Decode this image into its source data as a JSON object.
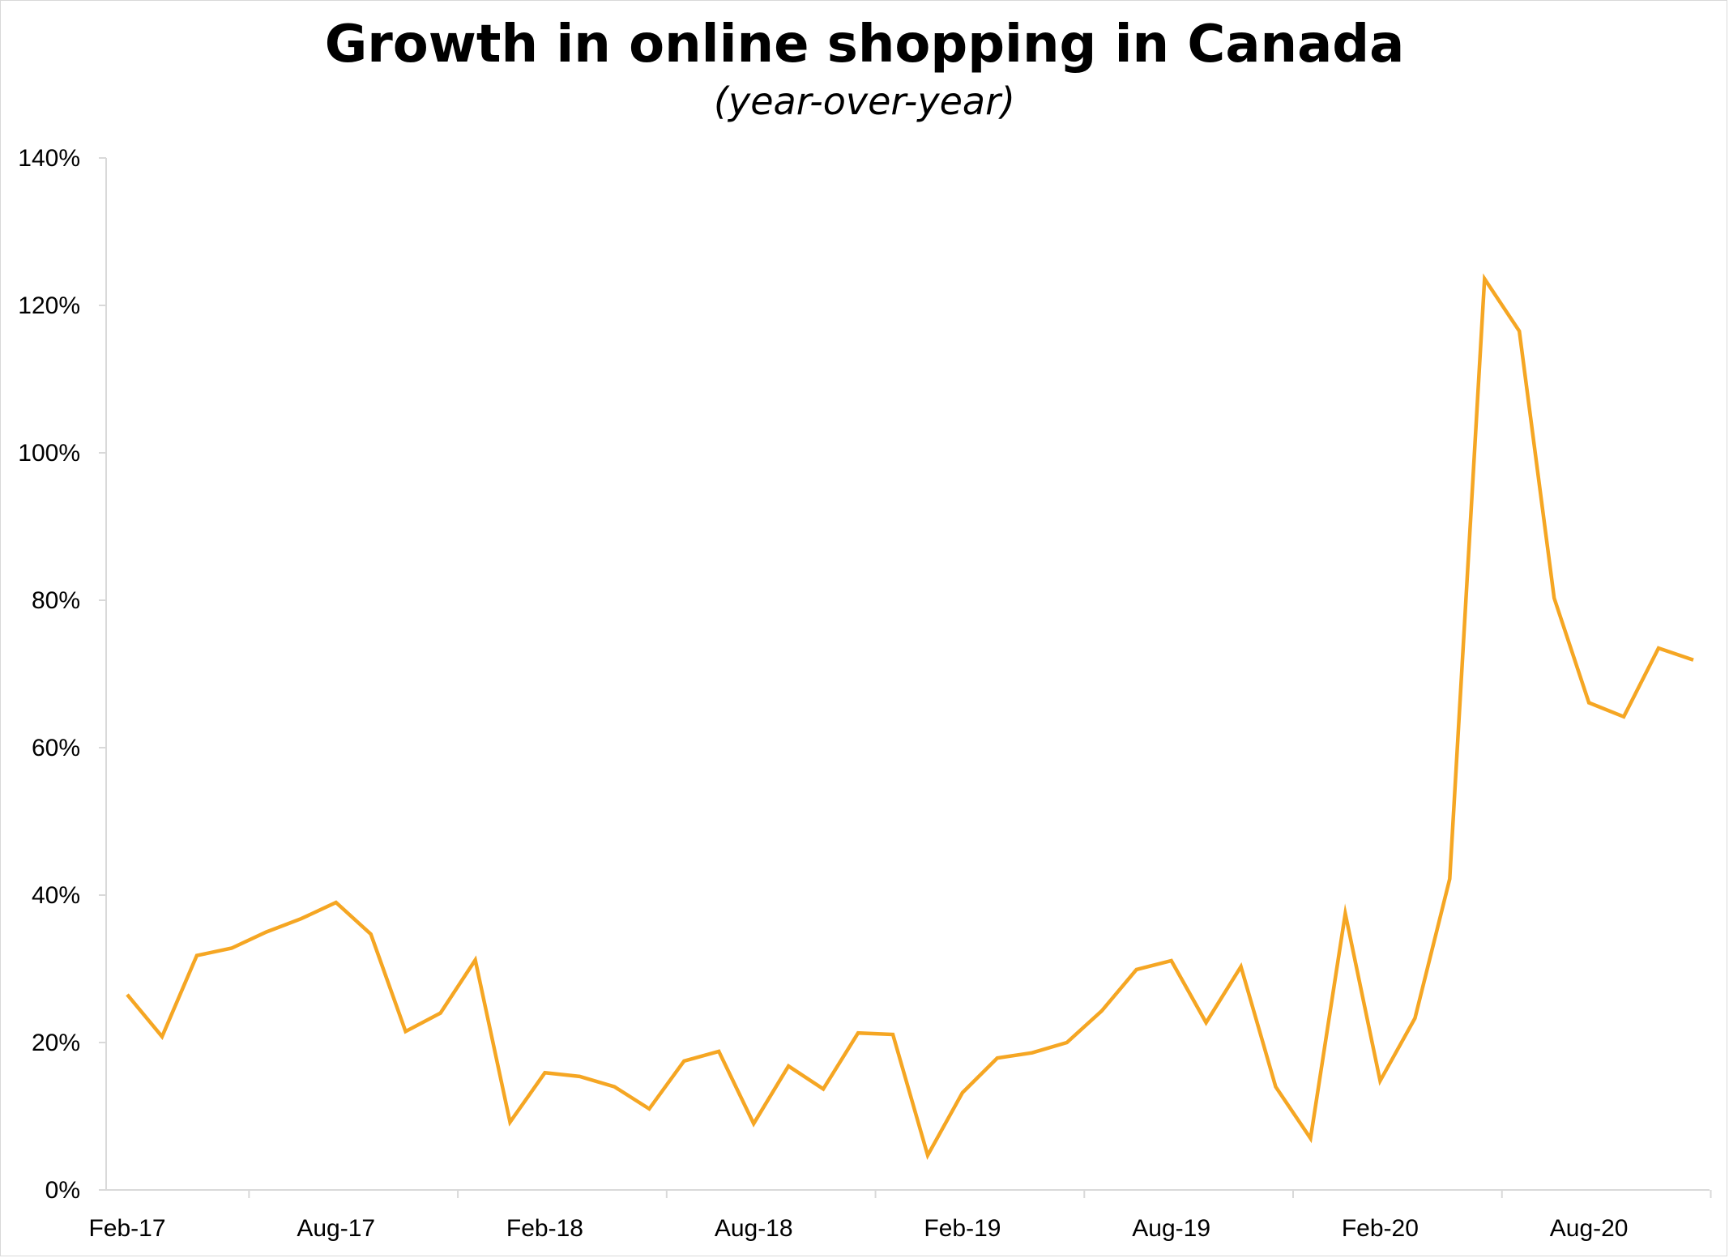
{
  "chart_data": {
    "type": "line",
    "title": "Growth in online shopping in Canada",
    "subtitle": "(year-over-year)",
    "xlabel": "",
    "ylabel": "",
    "x_tick_labels": [
      "Feb-17",
      "Aug-17",
      "Feb-18",
      "Aug-18",
      "Feb-19",
      "Aug-19",
      "Feb-20",
      "Aug-20"
    ],
    "y_tick_labels": [
      "0%",
      "20%",
      "40%",
      "60%",
      "80%",
      "100%",
      "120%",
      "140%"
    ],
    "ylim": [
      0,
      140
    ],
    "grid": false,
    "legend": "none",
    "line_color": "#F5A623",
    "series": [
      {
        "x": [
          "Feb-17",
          "Mar-17",
          "Apr-17",
          "May-17",
          "Jun-17",
          "Jul-17",
          "Aug-17",
          "Sep-17",
          "Oct-17",
          "Nov-17",
          "Dec-17",
          "Jan-18",
          "Feb-18",
          "Mar-18",
          "Apr-18",
          "May-18",
          "Jun-18",
          "Jul-18",
          "Aug-18",
          "Sep-18",
          "Oct-18",
          "Nov-18",
          "Dec-18",
          "Jan-19",
          "Feb-19",
          "Mar-19",
          "Apr-19",
          "May-19",
          "Jun-19",
          "Jul-19",
          "Aug-19",
          "Sep-19",
          "Oct-19",
          "Nov-19",
          "Dec-19",
          "Jan-20",
          "Feb-20",
          "Mar-20",
          "Apr-20",
          "May-20",
          "Jun-20",
          "Jul-20",
          "Aug-20",
          "Sep-20",
          "Oct-20",
          "Nov-20"
        ],
        "values": [
          26.5,
          20.8,
          31.8,
          32.8,
          35.0,
          36.8,
          39.0,
          34.7,
          21.5,
          24.0,
          31.2,
          9.2,
          15.9,
          15.4,
          14.0,
          11.0,
          17.5,
          18.8,
          9.0,
          16.8,
          13.7,
          21.3,
          21.1,
          4.7,
          13.2,
          17.9,
          18.6,
          20.0,
          24.3,
          29.9,
          31.1,
          22.7,
          30.3,
          14.0,
          7.0,
          37.5,
          14.8,
          23.3,
          42.2,
          123.6,
          116.5,
          80.3,
          66.1,
          64.2,
          73.5,
          71.9
        ]
      }
    ]
  }
}
